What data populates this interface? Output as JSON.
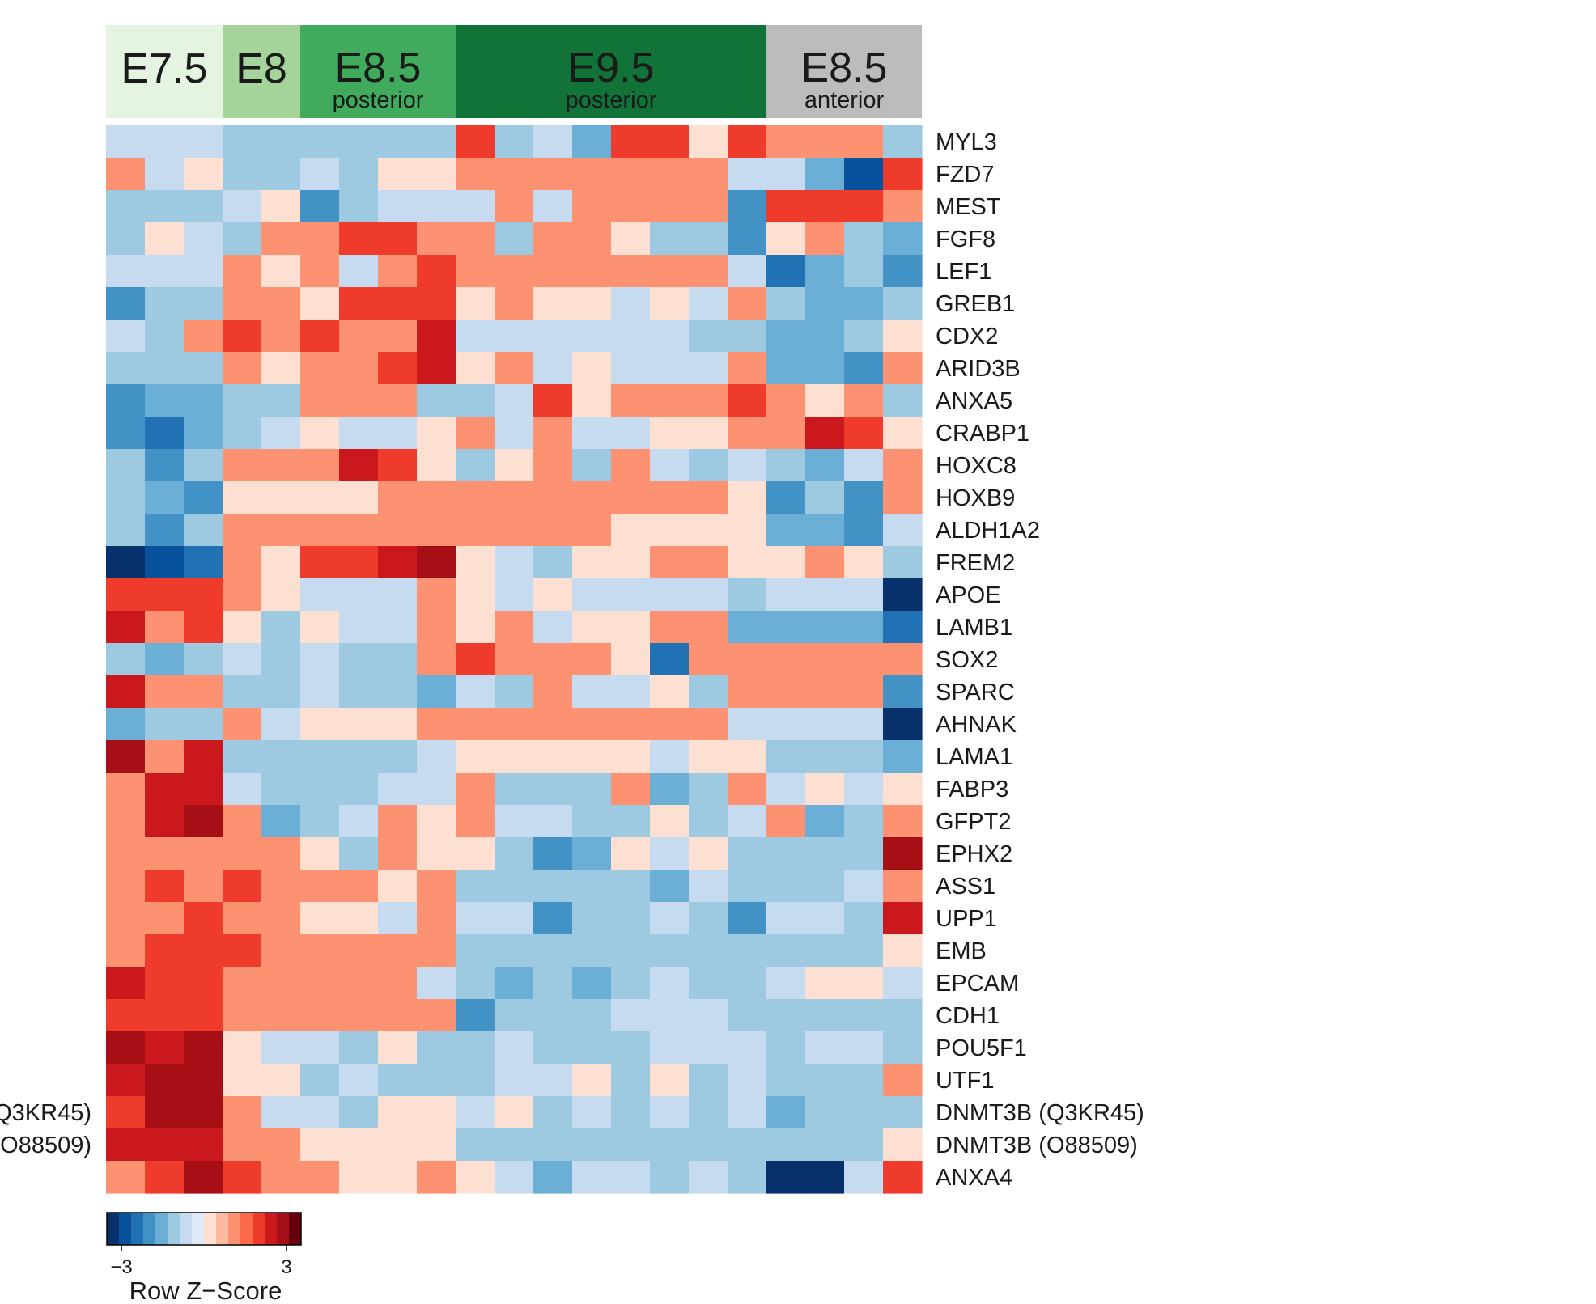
{
  "chart_data": {
    "type": "heatmap",
    "title": "",
    "xlabel": "",
    "ylabel": "",
    "column_groups": [
      {
        "label": "E7.5",
        "sublabel": "",
        "columns": 3,
        "color": "#e5f4e1"
      },
      {
        "label": "E8",
        "sublabel": "",
        "columns": 2,
        "color": "#a4d49a"
      },
      {
        "label": "E8.5",
        "sublabel": "posterior",
        "columns": 4,
        "color": "#41ab5d"
      },
      {
        "label": "E9.5",
        "sublabel": "posterior",
        "columns": 8,
        "color": "#127339"
      },
      {
        "label": "E8.5",
        "sublabel": "anterior",
        "columns": 4,
        "color": "#bdbcbc"
      }
    ],
    "rows": [
      "MYL3",
      "FZD7",
      "MEST",
      "FGF8",
      "LEF1",
      "GREB1",
      "CDX2",
      "ARID3B",
      "ANXA5",
      "CRABP1",
      "HOXC8",
      "HOXB9",
      "ALDH1A2",
      "FREM2",
      "APOE",
      "LAMB1",
      "SOX2",
      "SPARC",
      "AHNAK",
      "LAMA1",
      "FABP3",
      "GFPT2",
      "EPHX2",
      "ASS1",
      "UPP1",
      "EMB",
      "EPCAM",
      "CDH1",
      "POU5F1",
      "UTF1",
      "DNMT3B (Q3KR45)",
      "DNMT3B (O88509)",
      "ANXA4"
    ],
    "left_labels_clipped": [
      {
        "row": 30,
        "text": "Q3KR45)"
      },
      {
        "row": 31,
        "text": "O88509)"
      }
    ],
    "values": [
      [
        -0.5,
        -0.5,
        -0.5,
        -0.8,
        -0.8,
        -0.8,
        -0.8,
        -0.8,
        -0.8,
        1.5,
        -0.8,
        -0.5,
        -1.5,
        1.5,
        1.5,
        0.3,
        1.5,
        0.8,
        0.8,
        0.8,
        -1.1
      ],
      [
        0.8,
        -0.5,
        0.3,
        -1.1,
        -1.1,
        -0.5,
        -0.8,
        0.3,
        0.3,
        1.1,
        1.1,
        0.8,
        0.8,
        1.1,
        0.8,
        0.8,
        -0.5,
        -0.5,
        -1.5,
        -2.5,
        1.5
      ],
      [
        -1.1,
        -0.8,
        -1.1,
        -0.5,
        0.3,
        -1.8,
        -0.8,
        -0.5,
        -0.5,
        -0.5,
        0.8,
        -0.5,
        0.8,
        0.8,
        0.8,
        1.1,
        -1.8,
        1.5,
        1.5,
        1.5,
        0.8
      ],
      [
        -1.1,
        0.3,
        -0.5,
        -0.8,
        0.8,
        0.8,
        1.5,
        1.5,
        0.8,
        0.8,
        -0.8,
        1.1,
        0.8,
        0.3,
        -1.1,
        -0.8,
        -1.8,
        0.3,
        1.1,
        -1.1,
        -1.5
      ],
      [
        -0.5,
        -0.5,
        -0.5,
        1.1,
        0.3,
        0.8,
        -0.5,
        0.8,
        1.5,
        0.8,
        1.1,
        0.8,
        0.8,
        0.8,
        0.8,
        0.8,
        -0.5,
        -2.2,
        -1.5,
        -0.8,
        -1.8
      ],
      [
        -1.8,
        -1.1,
        -1.1,
        0.8,
        0.8,
        0.3,
        1.5,
        1.5,
        1.5,
        0.3,
        0.8,
        0.3,
        0.3,
        -0.5,
        0.3,
        -0.5,
        1.1,
        -0.8,
        -1.5,
        -1.5,
        -0.8
      ],
      [
        -0.5,
        -1.1,
        0.8,
        1.5,
        0.8,
        1.5,
        1.1,
        0.8,
        2.0,
        -0.5,
        -0.5,
        -0.5,
        -0.5,
        -0.5,
        -0.5,
        -1.1,
        -0.8,
        -1.5,
        -1.5,
        -1.1,
        0.3
      ],
      [
        -1.1,
        -0.8,
        -0.8,
        1.1,
        0.3,
        0.8,
        0.8,
        1.5,
        2.0,
        0.3,
        0.8,
        -0.5,
        0.3,
        -0.5,
        -0.5,
        -0.5,
        0.8,
        -1.5,
        -1.5,
        -1.8,
        0.8
      ],
      [
        -1.8,
        -1.5,
        -1.5,
        -0.8,
        -0.8,
        0.8,
        1.1,
        1.1,
        -0.8,
        -0.8,
        -0.5,
        1.5,
        0.3,
        0.8,
        0.8,
        0.8,
        1.5,
        0.8,
        0.3,
        0.8,
        -1.1
      ],
      [
        -1.8,
        -2.2,
        -1.5,
        -0.8,
        -0.5,
        0.3,
        -0.5,
        -0.5,
        0.3,
        0.8,
        -0.5,
        0.8,
        -0.5,
        -0.5,
        0.3,
        0.3,
        0.8,
        1.1,
        2.0,
        1.5,
        0.3
      ],
      [
        -0.8,
        -1.8,
        -0.8,
        0.8,
        0.8,
        1.1,
        2.0,
        1.5,
        0.3,
        -0.8,
        0.3,
        0.8,
        -0.8,
        0.8,
        -0.5,
        -0.8,
        -0.5,
        -1.1,
        -1.5,
        -0.5,
        1.1
      ],
      [
        -1.1,
        -1.5,
        -1.8,
        0.3,
        0.3,
        0.3,
        0.3,
        0.8,
        0.8,
        0.8,
        1.1,
        0.8,
        0.8,
        0.8,
        0.8,
        0.8,
        0.3,
        -1.8,
        -0.8,
        -1.8,
        0.8
      ],
      [
        -0.8,
        -1.8,
        -1.1,
        1.1,
        1.1,
        1.1,
        0.8,
        1.1,
        1.1,
        0.8,
        0.8,
        0.8,
        0.8,
        0.3,
        0.3,
        0.3,
        0.3,
        -1.5,
        -1.5,
        -1.8,
        -0.5
      ],
      [
        -3.0,
        -2.5,
        -2.2,
        0.8,
        0.3,
        1.5,
        1.5,
        2.0,
        2.3,
        0.3,
        -0.5,
        -1.1,
        0.3,
        0.3,
        0.8,
        0.8,
        0.3,
        0.3,
        0.8,
        0.3,
        -0.8
      ],
      [
        1.5,
        1.5,
        1.5,
        0.8,
        0.3,
        -0.5,
        -0.5,
        -0.5,
        0.8,
        0.3,
        -0.5,
        0.3,
        -0.5,
        -0.5,
        -0.5,
        -0.5,
        -0.8,
        -0.5,
        -0.5,
        -0.5,
        -3.0
      ],
      [
        2.0,
        0.8,
        1.5,
        0.3,
        -0.8,
        0.3,
        -0.5,
        -0.5,
        0.8,
        0.3,
        0.8,
        -0.5,
        0.3,
        0.3,
        0.8,
        0.8,
        -1.5,
        -1.5,
        -1.5,
        -1.5,
        -2.2
      ],
      [
        -1.1,
        -1.5,
        -0.8,
        -0.5,
        -1.1,
        -0.5,
        -0.8,
        -1.1,
        0.8,
        1.5,
        0.8,
        0.8,
        0.8,
        0.3,
        -2.2,
        1.1,
        0.8,
        0.8,
        0.8,
        0.8,
        1.1
      ],
      [
        2.0,
        0.8,
        1.1,
        -0.8,
        -1.1,
        -0.5,
        -0.8,
        -1.1,
        -1.5,
        -0.5,
        -0.8,
        0.8,
        -0.5,
        -0.5,
        0.3,
        -0.8,
        1.1,
        1.1,
        1.1,
        0.8,
        -1.8
      ],
      [
        -1.5,
        -0.8,
        -0.8,
        0.8,
        -0.5,
        0.3,
        0.3,
        0.3,
        0.8,
        0.8,
        0.8,
        0.8,
        0.8,
        0.8,
        0.8,
        0.8,
        -0.5,
        -0.5,
        -0.5,
        -0.5,
        -3.0
      ],
      [
        2.6,
        1.1,
        2.0,
        -0.8,
        -1.1,
        -0.8,
        -0.8,
        -0.8,
        -0.5,
        0.3,
        0.3,
        0.3,
        0.3,
        0.3,
        -0.5,
        0.3,
        0.3,
        -0.8,
        -0.8,
        -0.8,
        -1.5
      ],
      [
        1.1,
        2.0,
        2.0,
        -0.5,
        -0.8,
        -0.8,
        -1.1,
        -0.5,
        -0.5,
        0.8,
        -1.1,
        -1.1,
        -0.8,
        1.1,
        -1.5,
        -0.8,
        1.1,
        -0.5,
        0.3,
        -0.5,
        0.3
      ],
      [
        0.8,
        2.0,
        2.3,
        0.8,
        -1.5,
        -0.8,
        -0.5,
        0.8,
        0.3,
        0.8,
        -0.5,
        -0.5,
        -0.8,
        -1.1,
        0.3,
        -0.8,
        -0.5,
        0.8,
        -1.5,
        -1.1,
        1.1
      ],
      [
        0.8,
        0.8,
        0.8,
        1.1,
        0.8,
        0.3,
        -1.1,
        0.8,
        0.3,
        0.3,
        -0.8,
        -1.8,
        -1.5,
        0.3,
        -0.5,
        0.3,
        -0.8,
        -1.1,
        -0.8,
        -0.8,
        2.6
      ],
      [
        1.1,
        1.5,
        1.1,
        1.5,
        0.8,
        0.8,
        1.1,
        0.3,
        0.8,
        -0.8,
        -0.8,
        -1.1,
        -1.1,
        -0.8,
        -1.5,
        -0.5,
        -1.1,
        -0.8,
        -1.1,
        -0.5,
        0.8
      ],
      [
        1.1,
        0.8,
        1.5,
        0.8,
        0.8,
        0.3,
        0.3,
        -0.5,
        0.8,
        -0.5,
        -0.5,
        -1.8,
        -1.1,
        -0.8,
        -0.5,
        -0.8,
        -1.8,
        -0.5,
        -0.5,
        -1.1,
        2.0
      ],
      [
        1.1,
        1.5,
        1.5,
        1.5,
        1.1,
        0.8,
        0.8,
        0.8,
        1.1,
        -1.1,
        -1.1,
        -1.1,
        -1.1,
        -1.1,
        -0.8,
        -1.1,
        -0.8,
        -0.8,
        -0.8,
        -0.8,
        0.3
      ],
      [
        2.0,
        1.5,
        1.5,
        0.8,
        0.8,
        1.1,
        0.8,
        0.8,
        -0.5,
        -1.1,
        -1.5,
        -1.1,
        -1.5,
        -1.1,
        -0.5,
        -0.8,
        -0.8,
        -0.5,
        0.3,
        0.3,
        -0.5
      ],
      [
        1.5,
        1.5,
        1.5,
        1.1,
        1.1,
        0.8,
        0.8,
        0.8,
        0.8,
        -1.8,
        -1.1,
        -1.1,
        -0.8,
        -0.5,
        -0.5,
        -0.5,
        -0.8,
        -1.1,
        -0.8,
        -0.8,
        -0.8
      ],
      [
        2.3,
        2.0,
        2.3,
        0.3,
        -0.5,
        -0.5,
        -0.8,
        0.3,
        -0.8,
        -0.8,
        -0.5,
        -0.8,
        -0.8,
        -0.8,
        -0.5,
        -0.5,
        -0.5,
        -0.8,
        -0.5,
        -0.5,
        -0.8
      ],
      [
        2.0,
        2.3,
        2.3,
        0.3,
        0.3,
        -0.8,
        -0.5,
        -0.8,
        -1.1,
        -0.8,
        -0.5,
        -0.5,
        0.3,
        -0.8,
        0.3,
        -0.8,
        -0.5,
        -1.1,
        -0.8,
        -1.1,
        0.8
      ],
      [
        1.5,
        2.3,
        2.3,
        0.8,
        -0.5,
        -0.5,
        -1.1,
        0.3,
        0.3,
        -0.5,
        0.3,
        -0.8,
        -0.5,
        -0.8,
        -0.5,
        -0.8,
        -0.5,
        -1.5,
        -0.8,
        -1.1,
        -0.8
      ],
      [
        2.0,
        2.0,
        2.0,
        0.8,
        0.8,
        0.3,
        0.3,
        0.3,
        0.3,
        -1.1,
        -0.8,
        -0.8,
        -1.1,
        -1.1,
        -1.1,
        -1.1,
        -0.8,
        -0.8,
        -0.8,
        -0.8,
        0.3
      ],
      [
        1.1,
        1.5,
        2.3,
        1.5,
        0.8,
        0.8,
        0.3,
        0.3,
        1.1,
        0.3,
        -0.5,
        -1.5,
        -0.5,
        -0.5,
        -0.8,
        -0.5,
        -0.8,
        -3.0,
        -3.0,
        -0.5,
        1.5
      ]
    ],
    "colorbar": {
      "title": "Row Z−Score",
      "min_label": "−3",
      "max_label": "3",
      "min": -3,
      "max": 3,
      "colors": [
        "#08306b",
        "#08519c",
        "#2171b5",
        "#4292c6",
        "#6baed6",
        "#9ecae1",
        "#c6dbef",
        "#deebf7",
        "#fee0d2",
        "#fcbba1",
        "#fc9272",
        "#fb6a4a",
        "#ef3b2c",
        "#cb181d",
        "#a50f15",
        "#67000d"
      ]
    },
    "legend": "bottom-left"
  }
}
